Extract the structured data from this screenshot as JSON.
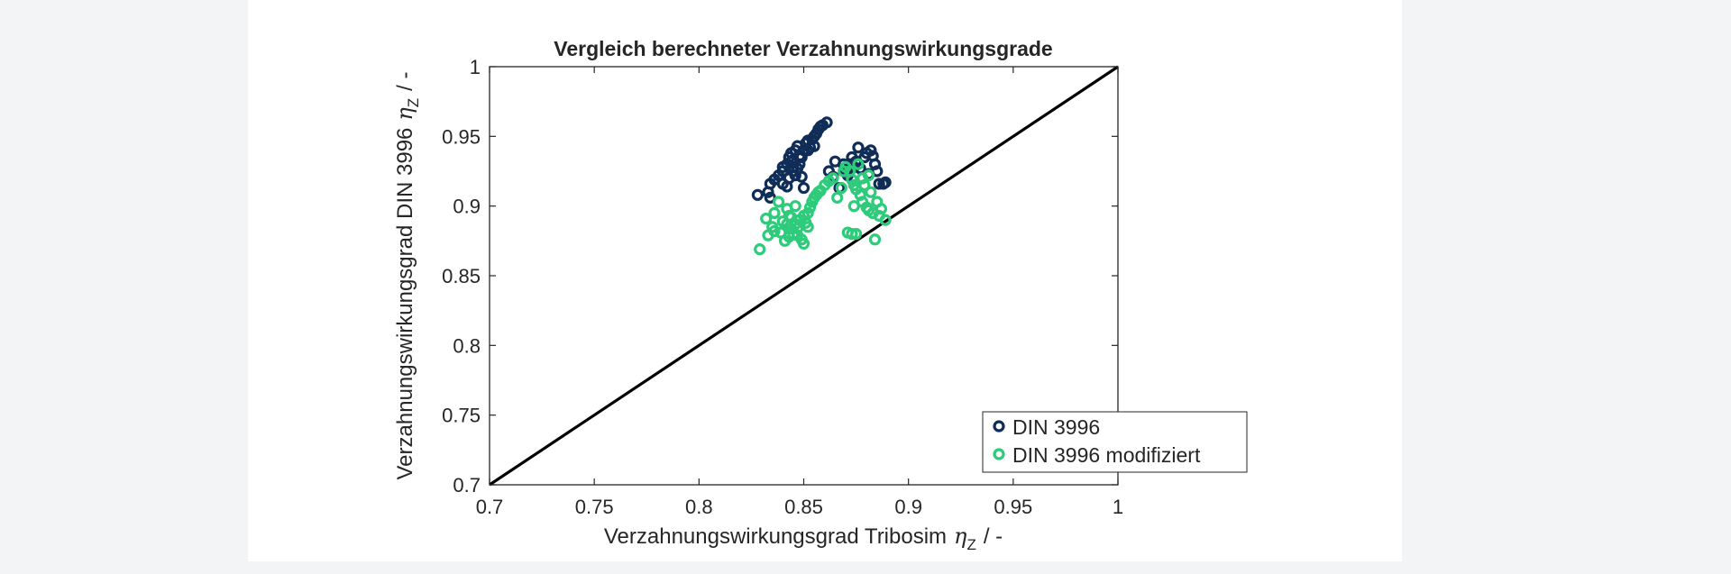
{
  "chart_data": {
    "type": "scatter",
    "title": "Vergleich berechneter Verzahnungswirkungsgrade",
    "xlabel": "Verzahnungswirkungsgrad Tribosim",
    "ylabel": "Verzahnungswirkungsgrad DIN 3996",
    "axis_symbol": "η",
    "axis_symbol_sub": "Z",
    "axis_unit": "/ -",
    "xlim": [
      0.7,
      1.0
    ],
    "ylim": [
      0.7,
      1.0
    ],
    "xticks": [
      "0.7",
      "0.75",
      "0.8",
      "0.85",
      "0.9",
      "0.95",
      "1"
    ],
    "yticks": [
      "0.7",
      "0.75",
      "0.8",
      "0.85",
      "0.9",
      "0.95",
      "1"
    ],
    "grid": false,
    "legend_position": "bottom-right",
    "reference_line": {
      "x": [
        0.7,
        1.0
      ],
      "y": [
        0.7,
        1.0
      ],
      "color": "#000000"
    },
    "series": [
      {
        "name": "DIN 3996",
        "color": "#0f2d57",
        "points": [
          [
            0.828,
            0.908
          ],
          [
            0.833,
            0.91
          ],
          [
            0.834,
            0.916
          ],
          [
            0.836,
            0.919
          ],
          [
            0.834,
            0.906
          ],
          [
            0.838,
            0.922
          ],
          [
            0.84,
            0.925
          ],
          [
            0.84,
            0.928
          ],
          [
            0.842,
            0.93
          ],
          [
            0.843,
            0.935
          ],
          [
            0.844,
            0.938
          ],
          [
            0.845,
            0.933
          ],
          [
            0.846,
            0.94
          ],
          [
            0.847,
            0.943
          ],
          [
            0.848,
            0.936
          ],
          [
            0.843,
            0.92
          ],
          [
            0.845,
            0.925
          ],
          [
            0.846,
            0.922
          ],
          [
            0.848,
            0.93
          ],
          [
            0.849,
            0.935
          ],
          [
            0.85,
            0.94
          ],
          [
            0.851,
            0.945
          ],
          [
            0.852,
            0.947
          ],
          [
            0.853,
            0.942
          ],
          [
            0.854,
            0.948
          ],
          [
            0.855,
            0.95
          ],
          [
            0.856,
            0.952
          ],
          [
            0.857,
            0.955
          ],
          [
            0.858,
            0.957
          ],
          [
            0.859,
            0.958
          ],
          [
            0.861,
            0.96
          ],
          [
            0.855,
            0.943
          ],
          [
            0.852,
            0.94
          ],
          [
            0.849,
            0.921
          ],
          [
            0.85,
            0.913
          ],
          [
            0.845,
            0.928
          ],
          [
            0.842,
            0.914
          ],
          [
            0.84,
            0.916
          ],
          [
            0.844,
            0.932
          ],
          [
            0.847,
            0.927
          ],
          [
            0.862,
            0.925
          ],
          [
            0.865,
            0.932
          ],
          [
            0.867,
            0.913
          ],
          [
            0.864,
            0.921
          ],
          [
            0.87,
            0.925
          ],
          [
            0.872,
            0.93
          ],
          [
            0.873,
            0.935
          ],
          [
            0.875,
            0.932
          ],
          [
            0.876,
            0.942
          ],
          [
            0.877,
            0.927
          ],
          [
            0.879,
            0.935
          ],
          [
            0.88,
            0.938
          ],
          [
            0.882,
            0.94
          ],
          [
            0.883,
            0.936
          ],
          [
            0.884,
            0.93
          ],
          [
            0.885,
            0.925
          ],
          [
            0.886,
            0.916
          ],
          [
            0.888,
            0.916
          ],
          [
            0.889,
            0.917
          ],
          [
            0.878,
            0.92
          ],
          [
            0.874,
            0.928
          ],
          [
            0.871,
            0.922
          ],
          [
            0.881,
            0.923
          ],
          [
            0.869,
            0.93
          ]
        ]
      },
      {
        "name": "DIN 3996 modifiziert",
        "color": "#2dcb7a",
        "points": [
          [
            0.829,
            0.869
          ],
          [
            0.833,
            0.879
          ],
          [
            0.832,
            0.891
          ],
          [
            0.835,
            0.885
          ],
          [
            0.836,
            0.895
          ],
          [
            0.838,
            0.903
          ],
          [
            0.84,
            0.889
          ],
          [
            0.841,
            0.875
          ],
          [
            0.842,
            0.898
          ],
          [
            0.843,
            0.893
          ],
          [
            0.844,
            0.884
          ],
          [
            0.845,
            0.88
          ],
          [
            0.846,
            0.887
          ],
          [
            0.847,
            0.879
          ],
          [
            0.848,
            0.89
          ],
          [
            0.849,
            0.876
          ],
          [
            0.85,
            0.873
          ],
          [
            0.851,
            0.888
          ],
          [
            0.852,
            0.895
          ],
          [
            0.853,
            0.899
          ],
          [
            0.854,
            0.903
          ],
          [
            0.855,
            0.906
          ],
          [
            0.856,
            0.908
          ],
          [
            0.857,
            0.91
          ],
          [
            0.858,
            0.911
          ],
          [
            0.86,
            0.915
          ],
          [
            0.862,
            0.918
          ],
          [
            0.864,
            0.92
          ],
          [
            0.866,
            0.906
          ],
          [
            0.868,
            0.913
          ],
          [
            0.87,
            0.928
          ],
          [
            0.872,
            0.925
          ],
          [
            0.873,
            0.919
          ],
          [
            0.874,
            0.915
          ],
          [
            0.875,
            0.912
          ],
          [
            0.876,
            0.93
          ],
          [
            0.877,
            0.908
          ],
          [
            0.878,
            0.903
          ],
          [
            0.879,
            0.915
          ],
          [
            0.88,
            0.899
          ],
          [
            0.881,
            0.922
          ],
          [
            0.882,
            0.91
          ],
          [
            0.883,
            0.895
          ],
          [
            0.884,
            0.876
          ],
          [
            0.885,
            0.903
          ],
          [
            0.886,
            0.893
          ],
          [
            0.887,
            0.898
          ],
          [
            0.889,
            0.89
          ],
          [
            0.873,
            0.88
          ],
          [
            0.871,
            0.881
          ],
          [
            0.875,
            0.88
          ],
          [
            0.846,
            0.9
          ],
          [
            0.844,
            0.892
          ],
          [
            0.842,
            0.887
          ],
          [
            0.839,
            0.881
          ],
          [
            0.843,
            0.878
          ],
          [
            0.847,
            0.884
          ],
          [
            0.852,
            0.885
          ],
          [
            0.85,
            0.893
          ],
          [
            0.869,
            0.925
          ],
          [
            0.874,
            0.9
          ],
          [
            0.878,
            0.92
          ],
          [
            0.881,
            0.897
          ],
          [
            0.836,
            0.882
          ]
        ]
      }
    ]
  }
}
